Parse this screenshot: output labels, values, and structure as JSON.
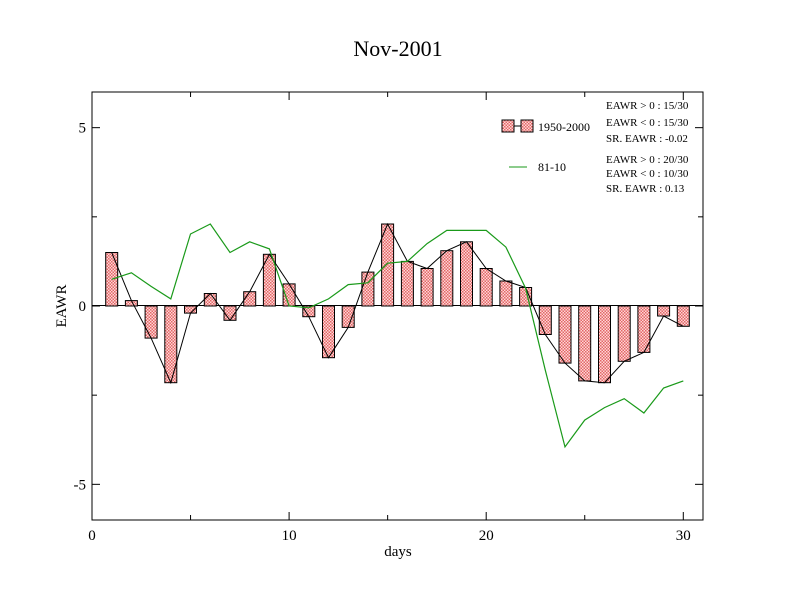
{
  "chart_data": {
    "type": "bar",
    "title": "Nov-2001",
    "xlabel": "days",
    "ylabel": "EAWR",
    "xlim": [
      0,
      31
    ],
    "ylim": [
      -6,
      6
    ],
    "x_ticks": [
      0,
      10,
      20,
      30
    ],
    "y_ticks": [
      5,
      0,
      -5
    ],
    "x_tick_labels": [
      "0",
      "10",
      "20",
      "30"
    ],
    "y_tick_labels": [
      "5",
      "0",
      "-5"
    ],
    "x": [
      1,
      2,
      3,
      4,
      5,
      6,
      7,
      8,
      9,
      10,
      11,
      12,
      13,
      14,
      15,
      16,
      17,
      18,
      19,
      20,
      21,
      22,
      23,
      24,
      25,
      26,
      27,
      28,
      29,
      30
    ],
    "series": [
      {
        "name": "1950-2000",
        "kind": "bar",
        "color": "#e87c7c",
        "values": [
          1.5,
          0.15,
          -0.9,
          -2.15,
          -0.2,
          0.35,
          -0.4,
          0.4,
          1.45,
          0.62,
          -0.3,
          -1.45,
          -0.6,
          0.95,
          2.3,
          1.25,
          1.05,
          1.55,
          1.8,
          1.05,
          0.7,
          0.52,
          -0.8,
          -1.6,
          -2.1,
          -2.15,
          -1.55,
          -1.3,
          -0.28,
          -0.57
        ]
      },
      {
        "name": "81-10",
        "kind": "line",
        "color": "#1a9a1a",
        "values": [
          0.75,
          0.93,
          0.55,
          0.2,
          2.02,
          2.3,
          1.5,
          1.8,
          1.6,
          0.0,
          -0.05,
          0.2,
          0.6,
          0.65,
          1.2,
          1.25,
          1.75,
          2.12,
          2.12,
          2.12,
          1.65,
          0.5,
          -1.8,
          -3.95,
          -3.2,
          -2.85,
          -2.6,
          -3.0,
          -2.3,
          -2.1
        ]
      }
    ],
    "legend": {
      "placement": "top-right",
      "entries": [
        "1950-2000",
        "81-10"
      ]
    },
    "annotations": [
      "EAWR > 0 : 15/30",
      "EAWR < 0 : 15/30",
      "SR. EAWR : -0.02",
      "EAWR > 0 : 20/30",
      "EAWR < 0 : 10/30",
      "SR. EAWR :  0.13"
    ],
    "grid": false
  }
}
